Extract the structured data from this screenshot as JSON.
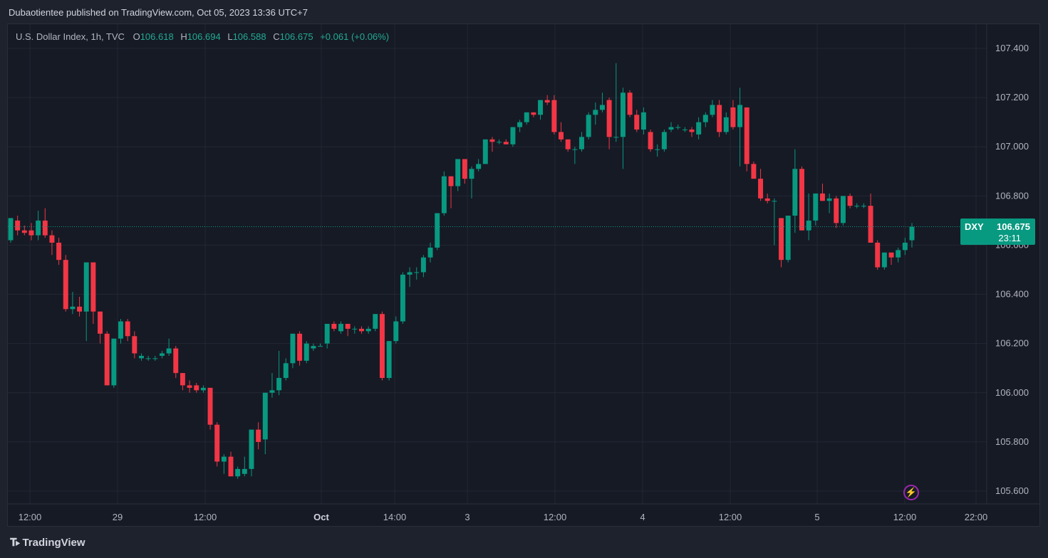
{
  "header": {
    "publish_text": "Dubaotientee published on TradingView.com, Oct 05, 2023 13:36 UTC+7"
  },
  "legend": {
    "symbol": "U.S. Dollar Index, 1h, TVC",
    "o_label": "O",
    "o_value": "106.618",
    "h_label": "H",
    "h_value": "106.694",
    "l_label": "L",
    "l_value": "106.588",
    "c_label": "C",
    "c_value": "106.675",
    "change": "+0.061 (+0.06%)"
  },
  "price_tag": {
    "symbol": "DXY",
    "price": "106.675",
    "countdown": "23:11"
  },
  "brand": {
    "name": "TradingView"
  },
  "colors": {
    "up": "#089981",
    "down": "#f23645",
    "grid": "#232734",
    "background": "#161a25",
    "axis_text": "#b2b5be"
  },
  "icons": {
    "alert": "lightning-bolt-icon",
    "logo": "tradingview-logo-icon"
  },
  "chart_data": {
    "type": "candlestick",
    "title": "U.S. Dollar Index, 1h, TVC",
    "ylim": [
      105.55,
      107.45
    ],
    "y_ticks": [
      105.6,
      105.8,
      106.0,
      106.2,
      106.4,
      106.6,
      106.8,
      107.0,
      107.2,
      107.4
    ],
    "y_tick_labels": [
      "105.600",
      "105.800",
      "106.000",
      "106.200",
      "106.400",
      "106.600",
      "106.800",
      "107.000",
      "107.200",
      "107.400"
    ],
    "x_tick_labels": [
      "12:00",
      "29",
      "12:00",
      "Oct",
      "14:00",
      "3",
      "12:00",
      "4",
      "12:00",
      "5",
      "12:00",
      "22:00"
    ],
    "last_price": 106.675,
    "grid": true,
    "candles": [
      [
        106.62,
        106.71,
        106.61,
        106.71
      ],
      [
        106.7,
        106.72,
        106.64,
        106.66
      ],
      [
        106.66,
        106.68,
        106.64,
        106.65
      ],
      [
        106.66,
        106.69,
        106.62,
        106.64
      ],
      [
        106.64,
        106.74,
        106.62,
        106.7
      ],
      [
        106.7,
        106.75,
        106.63,
        106.64
      ],
      [
        106.64,
        106.66,
        106.56,
        106.61
      ],
      [
        106.61,
        106.63,
        106.52,
        106.54
      ],
      [
        106.54,
        106.56,
        106.33,
        106.34
      ],
      [
        106.34,
        106.41,
        106.32,
        106.35
      ],
      [
        106.35,
        106.39,
        106.31,
        106.33
      ],
      [
        106.33,
        106.53,
        106.21,
        106.53
      ],
      [
        106.53,
        106.53,
        106.28,
        106.33
      ],
      [
        106.33,
        106.33,
        106.2,
        106.24
      ],
      [
        106.24,
        106.25,
        106.03,
        106.03
      ],
      [
        106.03,
        106.22,
        106.02,
        106.22
      ],
      [
        106.22,
        106.3,
        106.2,
        106.29
      ],
      [
        106.29,
        106.3,
        106.21,
        106.23
      ],
      [
        106.23,
        106.25,
        106.14,
        106.16
      ],
      [
        106.14,
        106.16,
        106.13,
        106.15
      ],
      [
        106.14,
        106.15,
        106.13,
        106.14
      ],
      [
        106.14,
        106.15,
        106.13,
        106.14
      ],
      [
        106.15,
        106.17,
        106.14,
        106.16
      ],
      [
        106.16,
        106.22,
        106.15,
        106.18
      ],
      [
        106.18,
        106.19,
        106.06,
        106.08
      ],
      [
        106.08,
        106.08,
        106.01,
        106.03
      ],
      [
        106.03,
        106.05,
        106.0,
        106.02
      ],
      [
        106.03,
        106.04,
        106.0,
        106.01
      ],
      [
        106.01,
        106.03,
        106.0,
        106.02
      ],
      [
        106.02,
        106.02,
        105.85,
        105.87
      ],
      [
        105.87,
        105.88,
        105.7,
        105.72
      ],
      [
        105.72,
        105.75,
        105.67,
        105.74
      ],
      [
        105.74,
        105.76,
        105.66,
        105.66
      ],
      [
        105.66,
        105.7,
        105.65,
        105.69
      ],
      [
        105.67,
        105.74,
        105.66,
        105.69
      ],
      [
        105.69,
        105.85,
        105.66,
        105.85
      ],
      [
        105.85,
        105.88,
        105.77,
        105.8
      ],
      [
        105.81,
        106.0,
        105.75,
        106.0
      ],
      [
        106.0,
        106.08,
        105.98,
        106.01
      ],
      [
        106.01,
        106.17,
        105.99,
        106.06
      ],
      [
        106.06,
        106.14,
        106.05,
        106.12
      ],
      [
        106.12,
        106.24,
        106.1,
        106.24
      ],
      [
        106.24,
        106.25,
        106.11,
        106.13
      ],
      [
        106.13,
        106.21,
        106.12,
        106.2
      ],
      [
        106.18,
        106.2,
        106.17,
        106.19
      ],
      [
        106.19,
        106.2,
        106.19,
        106.19
      ],
      [
        106.2,
        106.28,
        106.18,
        106.28
      ],
      [
        106.28,
        106.29,
        106.25,
        106.26
      ],
      [
        106.25,
        106.29,
        106.24,
        106.28
      ],
      [
        106.28,
        106.28,
        106.23,
        106.26
      ],
      [
        106.26,
        106.27,
        106.24,
        106.26
      ],
      [
        106.26,
        106.27,
        106.24,
        106.25
      ],
      [
        106.25,
        106.27,
        106.24,
        106.26
      ],
      [
        106.26,
        106.32,
        106.25,
        106.32
      ],
      [
        106.32,
        106.33,
        106.05,
        106.06
      ],
      [
        106.06,
        106.21,
        106.05,
        106.21
      ],
      [
        106.21,
        106.31,
        106.2,
        106.29
      ],
      [
        106.29,
        106.49,
        106.28,
        106.48
      ],
      [
        106.48,
        106.51,
        106.43,
        106.49
      ],
      [
        106.49,
        106.51,
        106.46,
        106.49
      ],
      [
        106.49,
        106.56,
        106.47,
        106.55
      ],
      [
        106.55,
        106.61,
        106.53,
        106.59
      ],
      [
        106.59,
        106.73,
        106.58,
        106.73
      ],
      [
        106.73,
        106.9,
        106.72,
        106.88
      ],
      [
        106.88,
        106.88,
        106.75,
        106.84
      ],
      [
        106.84,
        106.95,
        106.82,
        106.95
      ],
      [
        106.95,
        106.95,
        106.85,
        106.87
      ],
      [
        106.87,
        106.92,
        106.79,
        106.91
      ],
      [
        106.91,
        106.95,
        106.9,
        106.93
      ],
      [
        106.93,
        107.02,
        106.93,
        107.03
      ],
      [
        107.03,
        107.04,
        106.98,
        107.02
      ],
      [
        107.02,
        107.03,
        107.01,
        107.02
      ],
      [
        107.02,
        107.03,
        107.01,
        107.01
      ],
      [
        107.01,
        107.08,
        107.0,
        107.08
      ],
      [
        107.08,
        107.11,
        107.06,
        107.1
      ],
      [
        107.1,
        107.14,
        107.09,
        107.14
      ],
      [
        107.14,
        107.14,
        107.12,
        107.13
      ],
      [
        107.13,
        107.19,
        107.11,
        107.19
      ],
      [
        107.19,
        107.21,
        107.17,
        107.18
      ],
      [
        107.19,
        107.21,
        107.05,
        107.06
      ],
      [
        107.06,
        107.1,
        107.02,
        107.03
      ],
      [
        107.03,
        107.03,
        106.98,
        106.99
      ],
      [
        106.99,
        107.0,
        106.93,
        106.99
      ],
      [
        106.99,
        107.06,
        106.98,
        107.04
      ],
      [
        107.04,
        107.14,
        107.03,
        107.13
      ],
      [
        107.13,
        107.18,
        107.09,
        107.15
      ],
      [
        107.15,
        107.22,
        107.14,
        107.17
      ],
      [
        107.19,
        107.2,
        106.99,
        107.04
      ],
      [
        107.04,
        107.34,
        107.02,
        107.04
      ],
      [
        107.04,
        107.24,
        106.91,
        107.22
      ],
      [
        107.22,
        107.23,
        107.12,
        107.13
      ],
      [
        107.13,
        107.15,
        107.06,
        107.07
      ],
      [
        107.07,
        107.16,
        107.05,
        107.14
      ],
      [
        107.06,
        107.07,
        106.98,
        106.99
      ],
      [
        106.99,
        107.01,
        106.96,
        106.99
      ],
      [
        106.99,
        107.07,
        106.98,
        107.06
      ],
      [
        107.07,
        107.1,
        107.06,
        107.08
      ],
      [
        107.08,
        107.09,
        107.07,
        107.08
      ],
      [
        107.07,
        107.08,
        107.06,
        107.07
      ],
      [
        107.07,
        107.08,
        107.04,
        107.06
      ],
      [
        107.05,
        107.12,
        107.03,
        107.1
      ],
      [
        107.1,
        107.14,
        107.08,
        107.13
      ],
      [
        107.13,
        107.19,
        107.12,
        107.17
      ],
      [
        107.17,
        107.19,
        107.04,
        107.06
      ],
      [
        107.06,
        107.14,
        107.05,
        107.12
      ],
      [
        107.16,
        107.19,
        107.07,
        107.08
      ],
      [
        107.08,
        107.24,
        106.92,
        107.17
      ],
      [
        107.16,
        107.16,
        106.9,
        106.93
      ],
      [
        106.93,
        106.94,
        106.87,
        106.87
      ],
      [
        106.87,
        106.91,
        106.78,
        106.79
      ],
      [
        106.79,
        106.81,
        106.77,
        106.78
      ],
      [
        106.78,
        106.79,
        106.6,
        106.78
      ],
      [
        106.71,
        106.71,
        106.51,
        106.54
      ],
      [
        106.54,
        106.72,
        106.53,
        106.72
      ],
      [
        106.72,
        106.99,
        106.65,
        106.91
      ],
      [
        106.91,
        106.92,
        106.66,
        106.66
      ],
      [
        106.66,
        106.81,
        106.62,
        106.7
      ],
      [
        106.7,
        106.81,
        106.68,
        106.81
      ],
      [
        106.81,
        106.85,
        106.78,
        106.78
      ],
      [
        106.78,
        106.81,
        106.73,
        106.79
      ],
      [
        106.79,
        106.8,
        106.67,
        106.69
      ],
      [
        106.69,
        106.8,
        106.68,
        106.8
      ],
      [
        106.8,
        106.81,
        106.75,
        106.76
      ],
      [
        106.76,
        106.77,
        106.75,
        106.76
      ],
      [
        106.76,
        106.77,
        106.75,
        106.76
      ],
      [
        106.76,
        106.81,
        106.61,
        106.61
      ],
      [
        106.61,
        106.62,
        106.5,
        106.51
      ],
      [
        106.51,
        106.57,
        106.5,
        106.57
      ],
      [
        106.57,
        106.57,
        106.52,
        106.55
      ],
      [
        106.55,
        106.59,
        106.53,
        106.58
      ],
      [
        106.58,
        106.63,
        106.56,
        106.61
      ],
      [
        106.62,
        106.69,
        106.59,
        106.675
      ]
    ]
  }
}
